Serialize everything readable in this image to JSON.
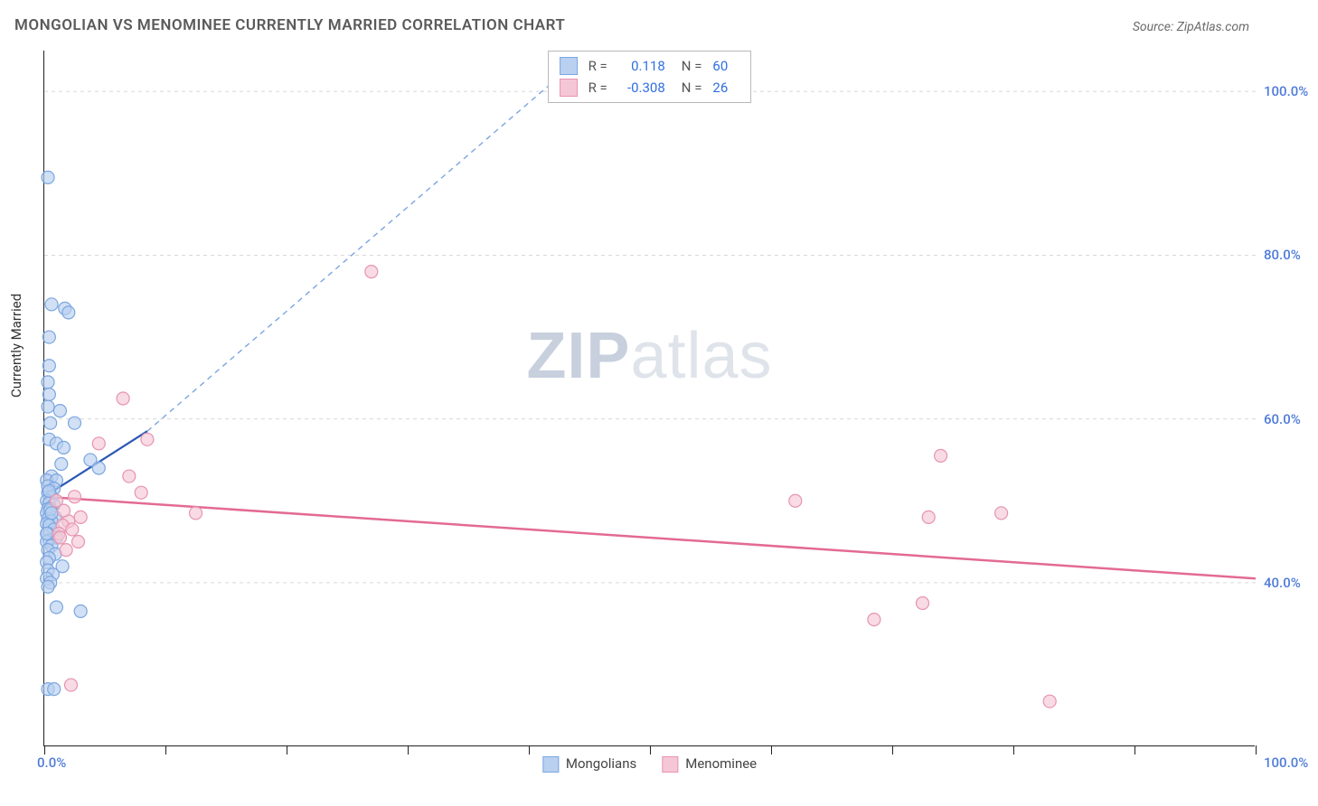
{
  "chart": {
    "type": "scatter",
    "title": "MONGOLIAN VS MENOMINEE CURRENTLY MARRIED CORRELATION CHART",
    "source_label": "Source: ZipAtlas.com",
    "ylabel": "Currently Married",
    "watermark_bold": "ZIP",
    "watermark_light": "atlas",
    "xlim": [
      0,
      100
    ],
    "ylim": [
      20,
      105
    ],
    "y_ticks": [
      40,
      60,
      80,
      100
    ],
    "y_tick_labels": [
      "40.0%",
      "60.0%",
      "80.0%",
      "100.0%"
    ],
    "x_tick_positions": [
      0,
      10,
      20,
      30,
      40,
      50,
      60,
      70,
      80,
      90,
      100
    ],
    "x_min_label": "0.0%",
    "x_max_label": "100.0%",
    "background_color": "#ffffff",
    "grid_color": "#d8d8d8",
    "axis_color": "#222222",
    "label_color": "#4f7bd9",
    "title_color": "#5a5a5a",
    "series": [
      {
        "name": "Mongolians",
        "fill": "#b9d0f0",
        "stroke": "#7ba6e0",
        "marker_radius": 7,
        "r_value": "0.118",
        "n_value": "60",
        "trend": {
          "x1": 0,
          "y1": 50.5,
          "x2": 8.5,
          "y2": 58.5,
          "extend_x2": 45,
          "extend_y2": 105,
          "color": "#2a57b5",
          "width": 2.2,
          "dash": "6 5"
        },
        "points": [
          [
            0.3,
            89.5
          ],
          [
            0.6,
            74.0
          ],
          [
            1.7,
            73.5
          ],
          [
            2.0,
            73.0
          ],
          [
            0.4,
            70.0
          ],
          [
            0.4,
            66.5
          ],
          [
            0.3,
            64.5
          ],
          [
            0.4,
            63.0
          ],
          [
            0.3,
            61.5
          ],
          [
            1.3,
            61.0
          ],
          [
            0.5,
            59.5
          ],
          [
            2.5,
            59.5
          ],
          [
            0.4,
            57.5
          ],
          [
            1.0,
            57.0
          ],
          [
            1.6,
            56.5
          ],
          [
            3.8,
            55.0
          ],
          [
            1.4,
            54.5
          ],
          [
            4.5,
            54.0
          ],
          [
            0.6,
            53.0
          ],
          [
            0.2,
            52.5
          ],
          [
            1.0,
            52.5
          ],
          [
            0.3,
            51.8
          ],
          [
            0.8,
            51.5
          ],
          [
            0.3,
            51.0
          ],
          [
            0.6,
            50.5
          ],
          [
            0.2,
            50.0
          ],
          [
            0.4,
            49.7
          ],
          [
            0.8,
            49.5
          ],
          [
            0.3,
            49.0
          ],
          [
            0.5,
            48.8
          ],
          [
            0.2,
            48.5
          ],
          [
            0.9,
            48.0
          ],
          [
            0.3,
            47.8
          ],
          [
            0.6,
            47.5
          ],
          [
            0.2,
            47.2
          ],
          [
            0.4,
            47.0
          ],
          [
            0.8,
            46.5
          ],
          [
            0.3,
            46.0
          ],
          [
            1.0,
            45.5
          ],
          [
            0.4,
            45.2
          ],
          [
            0.2,
            45.0
          ],
          [
            0.6,
            44.5
          ],
          [
            0.3,
            44.0
          ],
          [
            0.9,
            43.5
          ],
          [
            0.4,
            43.0
          ],
          [
            0.2,
            42.5
          ],
          [
            1.5,
            42.0
          ],
          [
            0.3,
            41.5
          ],
          [
            0.7,
            41.0
          ],
          [
            0.2,
            40.5
          ],
          [
            0.5,
            40.0
          ],
          [
            0.3,
            39.5
          ],
          [
            1.0,
            37.0
          ],
          [
            3.0,
            36.5
          ],
          [
            0.3,
            27.0
          ],
          [
            0.8,
            27.0
          ],
          [
            0.4,
            51.2
          ],
          [
            0.5,
            49.0
          ],
          [
            0.2,
            46.0
          ],
          [
            0.6,
            48.5
          ]
        ]
      },
      {
        "name": "Menominee",
        "fill": "#f5c7d6",
        "stroke": "#e794af",
        "marker_radius": 7,
        "r_value": "-0.308",
        "n_value": "26",
        "trend": {
          "x1": 0,
          "y1": 50.5,
          "x2": 100,
          "y2": 40.5,
          "color": "#e36a94",
          "width": 2.5
        },
        "points": [
          [
            27.0,
            78.0
          ],
          [
            6.5,
            62.5
          ],
          [
            8.5,
            57.5
          ],
          [
            4.5,
            57.0
          ],
          [
            7.0,
            53.0
          ],
          [
            8.0,
            51.0
          ],
          [
            12.5,
            48.5
          ],
          [
            3.0,
            48.0
          ],
          [
            2.0,
            47.5
          ],
          [
            1.5,
            47.0
          ],
          [
            2.3,
            46.5
          ],
          [
            1.2,
            46.0
          ],
          [
            2.8,
            45.0
          ],
          [
            1.8,
            44.0
          ],
          [
            62.0,
            50.0
          ],
          [
            74.0,
            55.5
          ],
          [
            73.0,
            48.0
          ],
          [
            79.0,
            48.5
          ],
          [
            68.5,
            35.5
          ],
          [
            72.5,
            37.5
          ],
          [
            83.0,
            25.5
          ],
          [
            2.2,
            27.5
          ],
          [
            1.0,
            50.0
          ],
          [
            1.6,
            48.8
          ],
          [
            2.5,
            50.5
          ],
          [
            1.3,
            45.5
          ]
        ]
      }
    ],
    "legend_bottom": [
      {
        "swatch_fill": "#b9d0f0",
        "swatch_stroke": "#7ba6e0",
        "label": "Mongolians"
      },
      {
        "swatch_fill": "#f5c7d6",
        "swatch_stroke": "#e794af",
        "label": "Menominee"
      }
    ]
  }
}
